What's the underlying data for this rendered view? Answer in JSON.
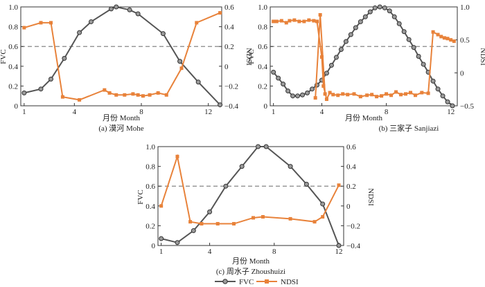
{
  "colors": {
    "fvc": "#555555",
    "ndsi": "#E8823A",
    "threshold": "#999999",
    "axis": "#333333"
  },
  "legend": {
    "fvc_label": "FVC",
    "ndsi_label": "NDSI"
  },
  "chart_data": [
    {
      "type": "line",
      "caption": "(a) 漠河 Mohe",
      "xlabel": "月份 Month",
      "ylabel_left": "FVC",
      "ylabel_right": "NDSI",
      "xlim": [
        0.8,
        12.8
      ],
      "xticks": [
        1,
        4,
        8,
        12
      ],
      "ylim_left": [
        0,
        1.0
      ],
      "yticks_left": [
        "0",
        "0.2",
        "0.4",
        "0.6",
        "0.8",
        "1.0"
      ],
      "ylim_right": [
        -0.4,
        0.6
      ],
      "yticks_right": [
        "−0.4",
        "−0.2",
        "0",
        "0.2",
        "0.4",
        "0.6"
      ],
      "threshold_right": 0.2,
      "fvc": {
        "x": [
          1.0,
          2.0,
          2.6,
          3.4,
          4.3,
          5.0,
          6.2,
          6.5,
          7.3,
          7.8,
          9.3,
          10.3,
          11.4,
          12.7
        ],
        "y": [
          0.13,
          0.17,
          0.27,
          0.48,
          0.74,
          0.85,
          0.98,
          1.0,
          0.97,
          0.93,
          0.73,
          0.45,
          0.24,
          0.01
        ]
      },
      "ndsi": {
        "x": [
          1.0,
          2.0,
          2.6,
          3.3,
          4.3,
          5.8,
          6.1,
          6.5,
          7.0,
          7.5,
          7.8,
          8.1,
          8.5,
          9.0,
          9.5,
          10.4,
          11.3,
          12.7
        ],
        "y": [
          0.39,
          0.44,
          0.44,
          -0.31,
          -0.34,
          -0.24,
          -0.27,
          -0.29,
          -0.29,
          -0.28,
          -0.29,
          -0.3,
          -0.29,
          -0.27,
          -0.29,
          -0.02,
          0.44,
          0.54
        ]
      }
    },
    {
      "type": "line",
      "caption": "(b) 三家子 Sanjiazi",
      "xlabel": "月份 Month",
      "ylabel_left": "FVC",
      "ylabel_right": "NDSI",
      "xlim": [
        0.8,
        12.4
      ],
      "xticks": [
        1,
        4,
        8,
        12
      ],
      "ylim_left": [
        0,
        1.0
      ],
      "yticks_left": [
        "0",
        "0.2",
        "0.4",
        "0.6",
        "0.8",
        "1.0"
      ],
      "ylim_right": [
        -0.5,
        1.0
      ],
      "yticks_right": [
        "−0.5",
        "0",
        "0.5",
        "1.0"
      ],
      "threshold_right": 0.4,
      "fvc": {
        "x": [
          1.0,
          1.3,
          1.6,
          1.9,
          2.2,
          2.5,
          2.8,
          3.1,
          3.4,
          3.7,
          4.0,
          4.3,
          4.6,
          4.9,
          5.2,
          5.5,
          5.8,
          6.1,
          6.4,
          6.7,
          7.0,
          7.3,
          7.6,
          7.9,
          8.2,
          8.5,
          8.8,
          9.1,
          9.4,
          9.7,
          10.0,
          10.3,
          10.6,
          10.9,
          11.2,
          11.5,
          11.8,
          12.1
        ],
        "y": [
          0.34,
          0.28,
          0.22,
          0.15,
          0.1,
          0.1,
          0.11,
          0.13,
          0.17,
          0.21,
          0.26,
          0.33,
          0.41,
          0.49,
          0.57,
          0.65,
          0.72,
          0.79,
          0.85,
          0.9,
          0.95,
          0.99,
          1.0,
          0.99,
          0.96,
          0.9,
          0.83,
          0.75,
          0.67,
          0.59,
          0.5,
          0.42,
          0.34,
          0.25,
          0.17,
          0.1,
          0.04,
          0.0
        ]
      },
      "ndsi": {
        "x": [
          1.0,
          1.2,
          1.5,
          1.8,
          2.0,
          2.3,
          2.6,
          2.9,
          3.2,
          3.5,
          3.7,
          4.0,
          4.1,
          4.3,
          4.5,
          4.7,
          5.0,
          5.3,
          5.6,
          6.0,
          6.4,
          6.8,
          7.1,
          7.4,
          7.7,
          8.0,
          8.3,
          8.6,
          8.9,
          9.2,
          9.5,
          9.8,
          10.2,
          10.6,
          10.9,
          11.2,
          11.4,
          11.6,
          11.8,
          12.0,
          12.2
        ],
        "y": [
          0.78,
          0.78,
          0.79,
          0.76,
          0.79,
          0.8,
          0.78,
          0.78,
          0.8,
          0.79,
          0.78,
          0.24,
          -0.2,
          -0.4,
          -0.3,
          -0.33,
          -0.34,
          -0.32,
          -0.33,
          -0.32,
          -0.36,
          -0.34,
          -0.33,
          -0.36,
          -0.35,
          -0.32,
          -0.34,
          -0.29,
          -0.33,
          -0.32,
          -0.3,
          -0.34,
          -0.3,
          -0.31,
          0.62,
          0.58,
          0.55,
          0.53,
          0.52,
          0.5,
          0.48
        ]
      },
      "ndsi_spike": {
        "x": [
          3.6,
          3.9,
          4.2
        ],
        "y": [
          -0.38,
          0.88,
          -0.32
        ]
      }
    },
    {
      "type": "line",
      "caption": "(c) 周水子 Zhoushuizi",
      "xlabel": "月份 Month",
      "ylabel_left": "FVC",
      "ylabel_right": "NDSI",
      "xlim": [
        0.8,
        12.3
      ],
      "xticks": [
        1,
        4,
        8,
        12
      ],
      "ylim_left": [
        0,
        1.0
      ],
      "yticks_left": [
        "0",
        "0.2",
        "0.4",
        "0.6",
        "0.8",
        "1.0"
      ],
      "ylim_right": [
        -0.4,
        0.6
      ],
      "yticks_right": [
        "−0.4",
        "−0.2",
        "0",
        "0.2",
        "0.4",
        "0.6"
      ],
      "threshold_right": 0.2,
      "fvc": {
        "x": [
          1.0,
          2.0,
          3.0,
          4.0,
          5.0,
          6.0,
          7.0,
          7.5,
          9.0,
          10.0,
          11.0,
          12.0
        ],
        "y": [
          0.07,
          0.03,
          0.15,
          0.34,
          0.6,
          0.8,
          1.0,
          1.0,
          0.8,
          0.62,
          0.42,
          0.0
        ]
      },
      "ndsi": {
        "x": [
          1.0,
          2.0,
          2.8,
          3.5,
          4.5,
          5.5,
          6.7,
          7.3,
          9.0,
          10.5,
          11.0,
          12.0
        ],
        "y": [
          0.0,
          0.5,
          -0.16,
          -0.18,
          -0.18,
          -0.18,
          -0.12,
          -0.11,
          -0.13,
          -0.16,
          -0.11,
          0.21
        ]
      }
    }
  ]
}
